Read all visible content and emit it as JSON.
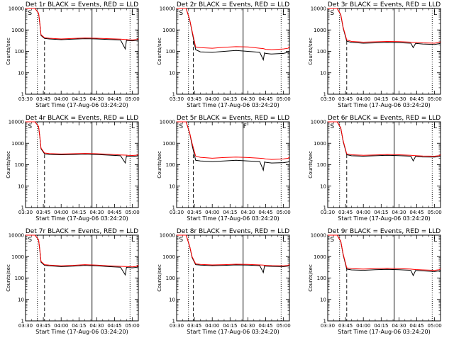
{
  "figure": {
    "x_tick_labels": [
      "03:30",
      "03:45",
      "04:00",
      "04:15",
      "04:30",
      "04:45",
      "05:00"
    ],
    "y_tick_labels": [
      "1",
      "10",
      "100",
      "1000",
      "10000"
    ],
    "y_label": "Counts/sec",
    "x_label": "Start Time (17-Aug-06 03:24:20)"
  },
  "colors": {
    "events": "#000000",
    "lld": "#ff0000",
    "axis": "#000000"
  },
  "chart_data": [
    {
      "type": "line",
      "title": "Det 1r BLACK = Events, RED = LLD",
      "xlim": [
        0,
        95
      ],
      "ylim": [
        1,
        10000
      ],
      "yscale": "log",
      "x": [
        0,
        8,
        11,
        12,
        13,
        16,
        20,
        30,
        40,
        50,
        60,
        70,
        80,
        84,
        85,
        86,
        90,
        94,
        95
      ],
      "series": [
        {
          "name": "Events",
          "values": [
            10000,
            10000,
            6000,
            2000,
            550,
            400,
            380,
            350,
            370,
            390,
            380,
            360,
            340,
            130,
            330,
            320,
            310,
            330,
            360
          ]
        },
        {
          "name": "LLD",
          "values": [
            10000,
            10000,
            6000,
            2100,
            600,
            430,
            410,
            380,
            400,
            420,
            410,
            390,
            370,
            360,
            360,
            350,
            340,
            360,
            400
          ]
        }
      ],
      "dotted_lines_x": [
        10,
        88
      ],
      "dashed_lines_x": [
        16
      ],
      "solid_lines_x": [
        56
      ],
      "flags": [
        {
          "x": 2,
          "text": "S"
        },
        {
          "x": 89,
          "text": "L"
        }
      ]
    },
    {
      "type": "line",
      "title": "Det 2r BLACK = Events, RED = LLD",
      "xlim": [
        0,
        95
      ],
      "ylim": [
        1,
        10000
      ],
      "yscale": "log",
      "x": [
        0,
        8,
        11,
        13,
        16,
        20,
        30,
        40,
        50,
        60,
        70,
        73,
        74,
        75,
        80,
        90,
        94,
        95
      ],
      "series": [
        {
          "name": "Events",
          "values": [
            10000,
            10000,
            3000,
            800,
            120,
            95,
            90,
            100,
            110,
            100,
            90,
            40,
            85,
            80,
            75,
            80,
            90,
            100
          ]
        },
        {
          "name": "LLD",
          "values": [
            10000,
            10000,
            3000,
            900,
            160,
            150,
            140,
            155,
            165,
            160,
            140,
            135,
            130,
            125,
            120,
            130,
            140,
            170
          ]
        }
      ],
      "dotted_lines_x": [
        10,
        88
      ],
      "dashed_lines_x": [
        14
      ],
      "solid_lines_x": [
        56
      ],
      "flags": [
        {
          "x": 2,
          "text": "S"
        },
        {
          "x": 89,
          "text": "L"
        }
      ]
    },
    {
      "type": "line",
      "title": "Det 3r BLACK = Events, RED = LLD",
      "xlim": [
        0,
        95
      ],
      "ylim": [
        1,
        10000
      ],
      "yscale": "log",
      "x": [
        0,
        8,
        11,
        13,
        16,
        20,
        30,
        40,
        50,
        60,
        70,
        72,
        74,
        80,
        90,
        94,
        95
      ],
      "series": [
        {
          "name": "Events",
          "values": [
            10000,
            10000,
            5000,
            1200,
            300,
            260,
            240,
            250,
            260,
            255,
            240,
            150,
            235,
            220,
            210,
            230,
            250
          ]
        },
        {
          "name": "LLD",
          "values": [
            10000,
            10000,
            5200,
            1300,
            340,
            290,
            270,
            280,
            290,
            285,
            270,
            265,
            260,
            250,
            240,
            260,
            280
          ]
        }
      ],
      "dotted_lines_x": [
        10,
        88
      ],
      "dashed_lines_x": [
        16
      ],
      "solid_lines_x": [
        56
      ],
      "flags": [
        {
          "x": 2,
          "text": "S"
        },
        {
          "x": 89,
          "text": "L"
        }
      ]
    },
    {
      "type": "line",
      "title": "Det 4r BLACK = Events, RED = LLD",
      "xlim": [
        0,
        95
      ],
      "ylim": [
        1,
        10000
      ],
      "yscale": "log",
      "x": [
        0,
        8,
        11,
        12,
        13,
        16,
        20,
        30,
        40,
        50,
        60,
        70,
        80,
        84,
        85,
        86,
        90,
        94,
        95
      ],
      "series": [
        {
          "name": "Events",
          "values": [
            10000,
            10000,
            6000,
            2000,
            550,
            320,
            300,
            290,
            300,
            310,
            300,
            280,
            260,
            120,
            255,
            250,
            245,
            255,
            270
          ]
        },
        {
          "name": "LLD",
          "values": [
            10000,
            10000,
            6000,
            2100,
            600,
            350,
            330,
            315,
            325,
            335,
            325,
            305,
            285,
            280,
            280,
            275,
            270,
            280,
            300
          ]
        }
      ],
      "dotted_lines_x": [
        10,
        88
      ],
      "dashed_lines_x": [
        16
      ],
      "solid_lines_x": [
        56
      ],
      "flags": [
        {
          "x": 2,
          "text": "S"
        },
        {
          "x": 89,
          "text": "L"
        }
      ]
    },
    {
      "type": "line",
      "title": "Det 5r BLACK = Events, RED = LLD",
      "xlim": [
        0,
        95
      ],
      "ylim": [
        1,
        10000
      ],
      "yscale": "log",
      "x": [
        0,
        8,
        11,
        13,
        16,
        20,
        30,
        40,
        50,
        60,
        70,
        73,
        74,
        75,
        80,
        90,
        94,
        95
      ],
      "series": [
        {
          "name": "Events",
          "values": [
            10000,
            10000,
            3000,
            800,
            160,
            150,
            140,
            150,
            160,
            150,
            140,
            55,
            135,
            130,
            120,
            125,
            135,
            150
          ]
        },
        {
          "name": "LLD",
          "values": [
            10000,
            10000,
            3000,
            1000,
            250,
            220,
            200,
            215,
            225,
            215,
            200,
            195,
            190,
            185,
            175,
            185,
            200,
            230
          ]
        }
      ],
      "dotted_lines_x": [
        10,
        88
      ],
      "dashed_lines_x": [
        14
      ],
      "solid_lines_x": [
        56
      ],
      "flags": [
        {
          "x": 2,
          "text": "S"
        },
        {
          "x": 56,
          "text": "F"
        },
        {
          "x": 89,
          "text": "L"
        }
      ]
    },
    {
      "type": "line",
      "title": "Det 6r BLACK = Events, RED = LLD",
      "xlim": [
        0,
        95
      ],
      "ylim": [
        1,
        10000
      ],
      "yscale": "log",
      "x": [
        0,
        8,
        11,
        13,
        16,
        20,
        30,
        40,
        50,
        60,
        70,
        72,
        74,
        80,
        90,
        94,
        95
      ],
      "series": [
        {
          "name": "Events",
          "values": [
            10000,
            10000,
            5000,
            1200,
            290,
            260,
            250,
            260,
            275,
            265,
            250,
            150,
            245,
            230,
            225,
            240,
            260
          ]
        },
        {
          "name": "LLD",
          "values": [
            10000,
            10000,
            5200,
            1300,
            320,
            290,
            275,
            285,
            300,
            290,
            275,
            270,
            265,
            255,
            250,
            265,
            290
          ]
        }
      ],
      "dotted_lines_x": [
        10,
        88
      ],
      "dashed_lines_x": [
        16
      ],
      "solid_lines_x": [
        56
      ],
      "flags": [
        {
          "x": 2,
          "text": "S"
        },
        {
          "x": 89,
          "text": "L"
        }
      ]
    },
    {
      "type": "line",
      "title": "Det 7r BLACK = Events, RED = LLD",
      "xlim": [
        0,
        95
      ],
      "ylim": [
        1,
        10000
      ],
      "yscale": "log",
      "x": [
        0,
        8,
        11,
        12,
        13,
        16,
        20,
        30,
        40,
        50,
        60,
        70,
        80,
        84,
        85,
        86,
        90,
        94,
        95
      ],
      "series": [
        {
          "name": "Events",
          "values": [
            10000,
            10000,
            6000,
            2000,
            550,
            390,
            370,
            340,
            360,
            390,
            370,
            340,
            320,
            140,
            315,
            310,
            300,
            320,
            360
          ]
        },
        {
          "name": "LLD",
          "values": [
            10000,
            10000,
            6000,
            2100,
            600,
            420,
            400,
            370,
            390,
            420,
            400,
            370,
            350,
            345,
            345,
            340,
            330,
            350,
            410
          ]
        }
      ],
      "dotted_lines_x": [
        10,
        88
      ],
      "dashed_lines_x": [
        16
      ],
      "solid_lines_x": [
        56
      ],
      "flags": [
        {
          "x": 2,
          "text": "S"
        },
        {
          "x": 89,
          "text": "L"
        }
      ]
    },
    {
      "type": "line",
      "title": "Det 8r BLACK = Events, RED = LLD",
      "xlim": [
        0,
        95
      ],
      "ylim": [
        1,
        10000
      ],
      "yscale": "log",
      "x": [
        0,
        8,
        11,
        13,
        16,
        20,
        30,
        40,
        50,
        60,
        70,
        73,
        74,
        75,
        80,
        90,
        94,
        95
      ],
      "series": [
        {
          "name": "Events",
          "values": [
            10000,
            10000,
            3000,
            900,
            420,
            400,
            380,
            390,
            410,
            400,
            380,
            180,
            370,
            360,
            350,
            340,
            360,
            400
          ]
        },
        {
          "name": "LLD",
          "values": [
            10000,
            10000,
            3000,
            1000,
            460,
            430,
            410,
            420,
            440,
            430,
            410,
            400,
            395,
            390,
            380,
            370,
            390,
            440
          ]
        }
      ],
      "dotted_lines_x": [
        10,
        88
      ],
      "dashed_lines_x": [
        14
      ],
      "solid_lines_x": [
        56
      ],
      "flags": [
        {
          "x": 2,
          "text": "S"
        },
        {
          "x": 89,
          "text": "L"
        }
      ]
    },
    {
      "type": "line",
      "title": "Det 9r BLACK = Events, RED = LLD",
      "xlim": [
        0,
        95
      ],
      "ylim": [
        1,
        10000
      ],
      "yscale": "log",
      "x": [
        0,
        8,
        11,
        13,
        16,
        20,
        30,
        40,
        50,
        60,
        70,
        72,
        74,
        80,
        90,
        94,
        95
      ],
      "series": [
        {
          "name": "Events",
          "values": [
            10000,
            10000,
            5000,
            1200,
            260,
            240,
            230,
            245,
            255,
            245,
            230,
            130,
            225,
            215,
            200,
            215,
            235
          ]
        },
        {
          "name": "LLD",
          "values": [
            10000,
            10000,
            5200,
            1300,
            300,
            275,
            260,
            275,
            285,
            275,
            260,
            255,
            250,
            240,
            230,
            245,
            270
          ]
        }
      ],
      "dotted_lines_x": [
        10,
        88
      ],
      "dashed_lines_x": [
        16
      ],
      "solid_lines_x": [
        56
      ],
      "flags": [
        {
          "x": 2,
          "text": "S"
        },
        {
          "x": 89,
          "text": "L"
        }
      ]
    }
  ]
}
